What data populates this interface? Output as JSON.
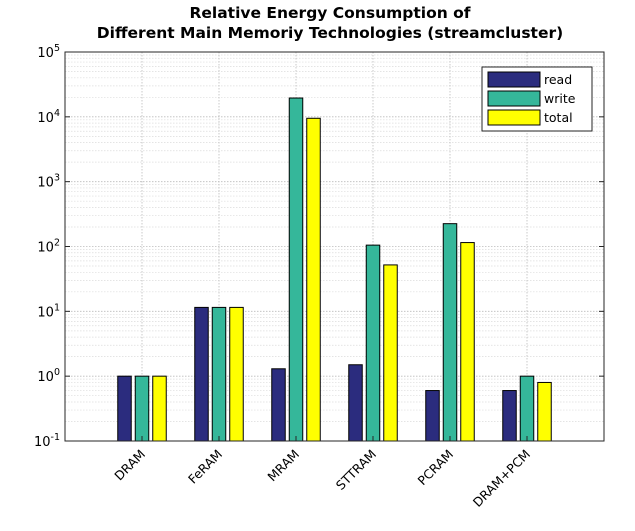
{
  "chart_data": {
    "type": "bar",
    "title": "Relative Energy Consumption of",
    "subtitle": "Different Main Memoriy Technologies (streamcluster)",
    "xlabel": "",
    "ylabel": "",
    "yscale": "log",
    "ylim": [
      0.1,
      100000
    ],
    "y_tick_labels": [
      {
        "value": 0.1,
        "base": "10",
        "exp": "-1"
      },
      {
        "value": 1,
        "base": "10",
        "exp": "0"
      },
      {
        "value": 10,
        "base": "10",
        "exp": "1"
      },
      {
        "value": 100,
        "base": "10",
        "exp": "2"
      },
      {
        "value": 1000,
        "base": "10",
        "exp": "3"
      },
      {
        "value": 10000,
        "base": "10",
        "exp": "4"
      },
      {
        "value": 100000,
        "base": "10",
        "exp": "5"
      }
    ],
    "grid": true,
    "legend_position": "top-right",
    "categories": [
      "DRAM",
      "FeRAM",
      "MRAM",
      "STTRAM",
      "PCRAM",
      "DRAM+PCM"
    ],
    "series": [
      {
        "name": "read",
        "color": "#2b2c7e",
        "values": [
          1,
          11.5,
          1.3,
          1.5,
          0.6,
          0.6
        ]
      },
      {
        "name": "write",
        "color": "#35b79a",
        "values": [
          1,
          11.5,
          19500,
          105,
          225,
          1
        ]
      },
      {
        "name": "total",
        "color": "#ffff00",
        "values": [
          1,
          11.5,
          9500,
          52,
          115,
          0.8
        ]
      }
    ]
  }
}
